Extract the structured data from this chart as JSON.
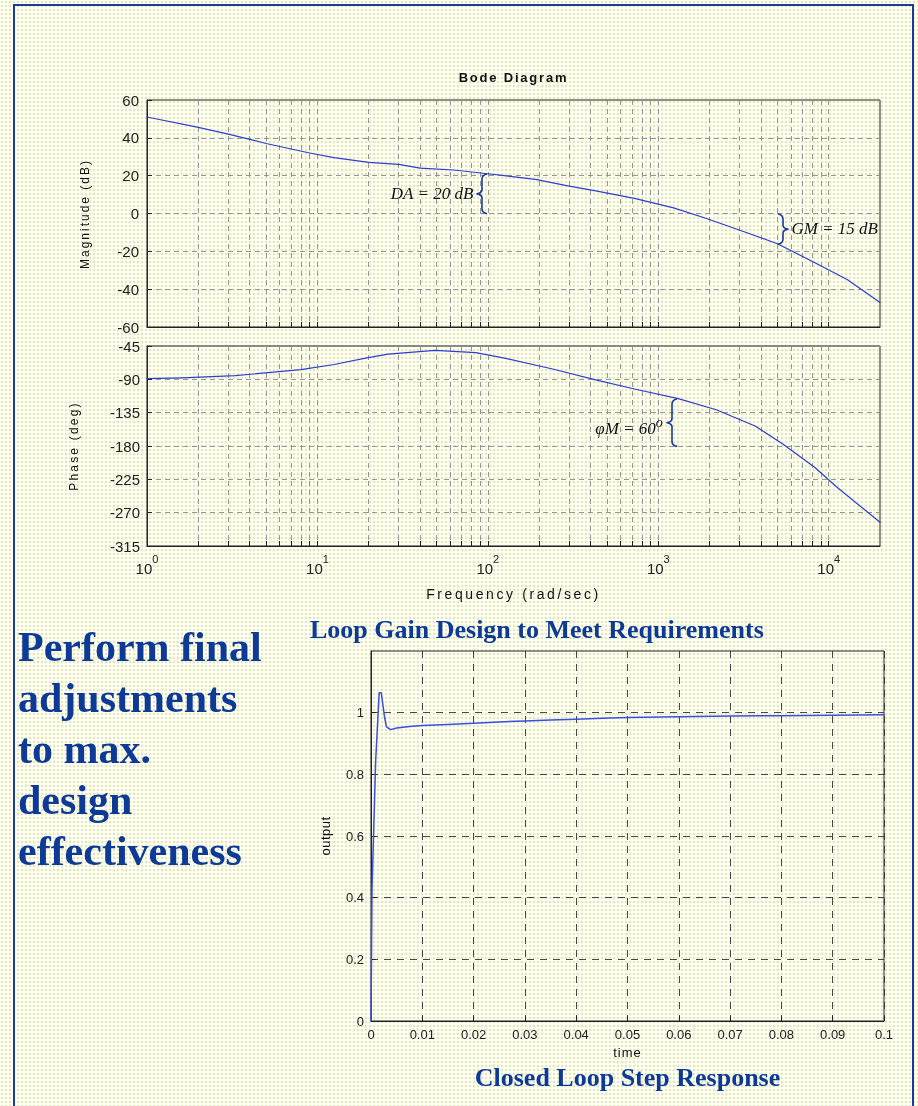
{
  "chart_data": [
    {
      "type": "line",
      "title": "Bode Diagram",
      "ylabel": "Magnitude (dB)",
      "x": [
        1,
        2,
        3,
        5,
        9,
        12.5,
        20,
        30,
        40,
        63,
        100,
        125,
        190,
        300,
        430,
        725,
        1230,
        1900,
        3160,
        5000,
        8300,
        12900,
        20000
      ],
      "values": [
        51,
        45.5,
        42,
        37,
        32,
        29.5,
        27,
        26,
        24,
        23,
        21,
        20,
        18,
        14.5,
        12,
        8,
        3,
        -2.5,
        -9.5,
        -16,
        -26,
        -35,
        -47
      ],
      "color": "#2e3fce",
      "xlim": [
        1,
        20000
      ],
      "xticks": [
        1,
        2,
        3,
        4,
        5,
        6,
        7,
        8,
        9,
        10,
        20,
        30,
        40,
        50,
        60,
        70,
        80,
        90,
        100,
        200,
        300,
        400,
        500,
        600,
        700,
        800,
        900,
        1000,
        2000,
        3000,
        4000,
        5000,
        6000,
        7000,
        8000,
        9000,
        10000
      ],
      "ylim": [
        -60,
        60
      ],
      "yticks": [
        -60,
        -40,
        -20,
        0,
        20,
        40,
        60
      ],
      "log": "x",
      "grid": true,
      "tick_labels": "y",
      "marker": "none",
      "annotations": [
        {
          "text": "DA = 20 dB",
          "x": 100,
          "y": 21
        },
        {
          "text": "GM = 15 dB",
          "x": 5000,
          "y": -16
        }
      ]
    },
    {
      "type": "line",
      "ylabel": "Phase (deg)",
      "xlabel": "Frequency (rad/sec)",
      "x": [
        1,
        1.6,
        3.3,
        8,
        12.5,
        19.5,
        26,
        49,
        85,
        123,
        240,
        435,
        725,
        1310,
        2190,
        3700,
        5350,
        8300,
        11100,
        20000
      ],
      "values": [
        -89,
        -88,
        -85,
        -77,
        -70,
        -61,
        -56,
        -51,
        -54,
        -61,
        -76,
        -91,
        -103,
        -116,
        -131,
        -153,
        -177,
        -209,
        -235,
        -283
      ],
      "color": "#2e3fce",
      "xlim": [
        1,
        20000
      ],
      "xticks": [
        {
          "value": 1,
          "label": "10$^{0}$"
        },
        {
          "value": 2,
          "label": null
        },
        {
          "value": 3,
          "label": null
        },
        {
          "value": 4,
          "label": null
        },
        {
          "value": 5,
          "label": null
        },
        {
          "value": 6,
          "label": null
        },
        {
          "value": 7,
          "label": null
        },
        {
          "value": 8,
          "label": null
        },
        {
          "value": 9,
          "label": null
        },
        {
          "value": 10,
          "label": "10$^{1}$"
        },
        {
          "value": 20,
          "label": null
        },
        {
          "value": 30,
          "label": null
        },
        {
          "value": 40,
          "label": null
        },
        {
          "value": 50,
          "label": null
        },
        {
          "value": 60,
          "label": null
        },
        {
          "value": 70,
          "label": null
        },
        {
          "value": 80,
          "label": null
        },
        {
          "value": 90,
          "label": null
        },
        {
          "value": 100,
          "label": "10$^{2}$"
        },
        {
          "value": 200,
          "label": null
        },
        {
          "value": 300,
          "label": null
        },
        {
          "value": 400,
          "label": null
        },
        {
          "value": 500,
          "label": null
        },
        {
          "value": 600,
          "label": null
        },
        {
          "value": 700,
          "label": null
        },
        {
          "value": 800,
          "label": null
        },
        {
          "value": 900,
          "label": null
        },
        {
          "value": 1000,
          "label": "10$^{3}$"
        },
        {
          "value": 2000,
          "label": null
        },
        {
          "value": 3000,
          "label": null
        },
        {
          "value": 4000,
          "label": null
        },
        {
          "value": 5000,
          "label": null
        },
        {
          "value": 6000,
          "label": null
        },
        {
          "value": 7000,
          "label": null
        },
        {
          "value": 8000,
          "label": null
        },
        {
          "value": 9000,
          "label": null
        },
        {
          "value": 10000,
          "label": "10$^{4}$"
        }
      ],
      "ylim": [
        -315,
        -45
      ],
      "yticks": [
        -315,
        -270,
        -225,
        -180,
        -135,
        -90,
        -45
      ],
      "log": "x",
      "grid": true,
      "marker": "none",
      "annotations": [
        {
          "text": "φM = 60$^{o}$",
          "x": 1310,
          "y": -116
        }
      ]
    },
    {
      "type": "other",
      "title": "Perform final adjustments to max. design effectiveness"
    },
    {
      "type": "line",
      "title": "Loop Gain Design to Meet Requirements",
      "xlabel": "time",
      "ylabel": "output",
      "x": [
        0,
        0.0002,
        0.0006,
        0.0009,
        0.0013,
        0.0016,
        0.002,
        0.0026,
        0.003,
        0.0038,
        0.005,
        0.0075,
        0.01,
        0.015,
        0.02,
        0.025,
        0.03,
        0.035,
        0.04,
        0.045,
        0.05,
        0.06,
        0.07,
        0.08,
        0.09,
        0.1
      ],
      "values": [
        0,
        0.43,
        0.66,
        0.84,
        0.97,
        1.065,
        1.065,
        0.99,
        0.955,
        0.945,
        0.95,
        0.955,
        0.958,
        0.962,
        0.966,
        0.97,
        0.973,
        0.976,
        0.979,
        0.982,
        0.984,
        0.987,
        0.989,
        0.99,
        0.992,
        0.993
      ],
      "color": "#3b4fe0",
      "xlim": [
        0,
        0.1
      ],
      "xticks": [
        0,
        0.01,
        0.02,
        0.03,
        0.04,
        0.05,
        0.06,
        0.07,
        0.08,
        0.09,
        0.1
      ],
      "ylim": [
        0,
        1.2
      ],
      "yticks": [
        0,
        0.2,
        0.4,
        0.6,
        0.8,
        1
      ],
      "grid": true,
      "marker": "none",
      "annotations": [
        "Closed Loop Step Response"
      ]
    }
  ]
}
